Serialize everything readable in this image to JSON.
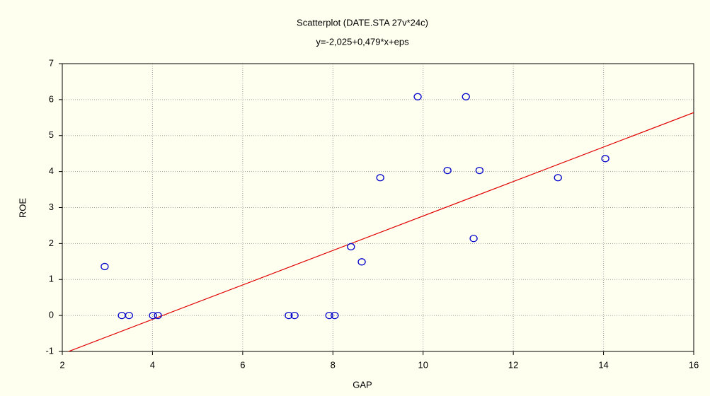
{
  "chart_data": {
    "type": "scatter",
    "title": "Scatterplot (DATE.STA 27v*24c)",
    "subtitle": "y=-2,025+0,479*x+eps",
    "x_label": "GAP",
    "y_label": "ROE",
    "x": [
      2.94,
      3.32,
      3.48,
      4.01,
      4.12,
      7.02,
      7.15,
      7.92,
      8.04,
      8.4,
      8.64,
      9.05,
      9.88,
      10.54,
      10.95,
      11.12,
      11.25,
      12.99,
      14.04
    ],
    "values": [
      1.36,
      0,
      0,
      0,
      0,
      0,
      0,
      0,
      0,
      1.91,
      1.49,
      3.83,
      6.08,
      4.03,
      6.08,
      2.14,
      4.03,
      3.83,
      4.36
    ],
    "color": "#0000cc",
    "fit": {
      "intercept": -2.025,
      "slope": 0.479,
      "color": "#e00000"
    },
    "xlim": [
      2,
      16
    ],
    "ylim": [
      -1,
      7
    ],
    "xticks": [
      2,
      4,
      6,
      8,
      10,
      12,
      14,
      16
    ],
    "yticks": [
      -1,
      0,
      1,
      2,
      3,
      4,
      5,
      6,
      7
    ],
    "grid": true
  }
}
